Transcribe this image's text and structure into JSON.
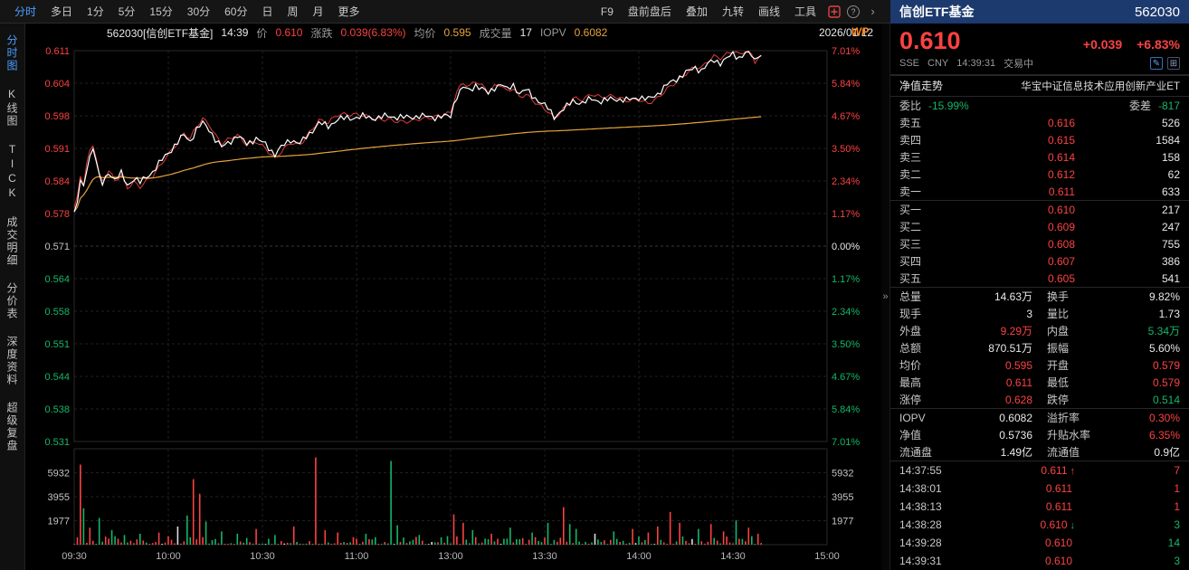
{
  "icons": {
    "help": "?",
    "more": "›",
    "collapse": "»",
    "edit": "✎",
    "grid": "⊞"
  },
  "toolbar": {
    "left_items": [
      "分时",
      "多日",
      "1分",
      "5分",
      "15分",
      "30分",
      "60分",
      "日",
      "周",
      "月",
      "更多"
    ],
    "active_item": "分时",
    "right_items": [
      "F9",
      "盘前盘后",
      "叠加",
      "九转",
      "画线",
      "工具"
    ]
  },
  "sidebar": {
    "items": [
      "分时图",
      "K线图",
      "TICK",
      "成交明细",
      "分价表",
      "深度资料",
      "超级复盘"
    ],
    "active_item": "分时图"
  },
  "chart_header": {
    "code_name": "562030[信创ETF基金]",
    "time": "14:39",
    "price_label": "价",
    "price": "0.610",
    "change_label": "涨跌",
    "change": "0.039(6.83%)",
    "avg_label": "均价",
    "avg": "0.595",
    "volume_label": "成交量",
    "volume": "17",
    "iopv_label": "IOPV",
    "iopv": "0.6082",
    "date": "2026/01/12",
    "wp_badge": "WP"
  },
  "chart": {
    "type": "line",
    "y_labels_left": [
      "0.611",
      "0.604",
      "0.598",
      "0.591",
      "0.584",
      "0.578",
      "0.571",
      "0.564",
      "0.558",
      "0.551",
      "0.544",
      "0.538",
      "0.531"
    ],
    "y_labels_right": [
      "7.01%",
      "5.84%",
      "4.67%",
      "3.50%",
      "2.34%",
      "1.17%",
      "0.00%",
      "1.17%",
      "2.34%",
      "3.50%",
      "4.67%",
      "5.84%",
      "7.01%"
    ],
    "vol_labels": [
      "5932",
      "3955",
      "1977"
    ],
    "vol_gridline_values": [
      5932,
      3955,
      1977
    ],
    "time_labels": [
      "09:30",
      "10:00",
      "10:30",
      "11:00",
      "13:00",
      "13:30",
      "14:00",
      "14:30",
      "15:00"
    ],
    "time_minutes": [
      0,
      30,
      60,
      90,
      120,
      150,
      180,
      210,
      240
    ],
    "price_max": 0.611,
    "price_min": 0.531,
    "prev_close": 0.571,
    "vol_max": 7909,
    "total_minutes": 240,
    "current_minute": 219,
    "colors": {
      "up": "#fb4242",
      "down": "#14b768",
      "flat": "#dcdcdc",
      "price": "#ffffff",
      "avg": "#e6a33c",
      "net": "#e03b3b"
    },
    "price_waypoints": [
      [
        0,
        0.578
      ],
      [
        1,
        0.58
      ],
      [
        2,
        0.5845
      ],
      [
        3,
        0.5828
      ],
      [
        4,
        0.587
      ],
      [
        5,
        0.5895
      ],
      [
        6,
        0.591
      ],
      [
        7,
        0.5885
      ],
      [
        8,
        0.585
      ],
      [
        9,
        0.5838
      ],
      [
        11,
        0.5862
      ],
      [
        13,
        0.5845
      ],
      [
        15,
        0.5858
      ],
      [
        17,
        0.5835
      ],
      [
        19,
        0.5848
      ],
      [
        21,
        0.584
      ],
      [
        23,
        0.5852
      ],
      [
        25,
        0.5862
      ],
      [
        27,
        0.5878
      ],
      [
        29,
        0.5895
      ],
      [
        31,
        0.5908
      ],
      [
        33,
        0.5922
      ],
      [
        35,
        0.5938
      ],
      [
        37,
        0.5925
      ],
      [
        39,
        0.5948
      ],
      [
        41,
        0.5962
      ],
      [
        43,
        0.595
      ],
      [
        45,
        0.5928
      ],
      [
        47,
        0.5912
      ],
      [
        49,
        0.5922
      ],
      [
        52,
        0.5935
      ],
      [
        55,
        0.592
      ],
      [
        58,
        0.593
      ],
      [
        61,
        0.5918
      ],
      [
        64,
        0.5898
      ],
      [
        66,
        0.5912
      ],
      [
        69,
        0.5928
      ],
      [
        72,
        0.592
      ],
      [
        75,
        0.594
      ],
      [
        78,
        0.5962
      ],
      [
        81,
        0.5955
      ],
      [
        84,
        0.597
      ],
      [
        88,
        0.5972
      ],
      [
        92,
        0.5975
      ],
      [
        96,
        0.5972
      ],
      [
        100,
        0.5976
      ],
      [
        105,
        0.5973
      ],
      [
        110,
        0.5976
      ],
      [
        115,
        0.5974
      ],
      [
        120,
        0.5976
      ],
      [
        121,
        0.6
      ],
      [
        122,
        0.6018
      ],
      [
        124,
        0.6035
      ],
      [
        126,
        0.6028
      ],
      [
        128,
        0.604
      ],
      [
        130,
        0.6032
      ],
      [
        132,
        0.6022
      ],
      [
        134,
        0.6035
      ],
      [
        136,
        0.6042
      ],
      [
        138,
        0.603
      ],
      [
        140,
        0.604
      ],
      [
        142,
        0.6022
      ],
      [
        144,
        0.603
      ],
      [
        146,
        0.6018
      ],
      [
        148,
        0.6008
      ],
      [
        151,
        0.5992
      ],
      [
        153,
        0.5975
      ],
      [
        155,
        0.5985
      ],
      [
        157,
        0.5995
      ],
      [
        159,
        0.6008
      ],
      [
        162,
        0.6002
      ],
      [
        165,
        0.6012
      ],
      [
        168,
        0.6006
      ],
      [
        172,
        0.6012
      ],
      [
        176,
        0.6008
      ],
      [
        180,
        0.6015
      ],
      [
        183,
        0.601
      ],
      [
        186,
        0.6022
      ],
      [
        189,
        0.604
      ],
      [
        192,
        0.6052
      ],
      [
        195,
        0.6065
      ],
      [
        198,
        0.6075
      ],
      [
        200,
        0.607
      ],
      [
        202,
        0.6082
      ],
      [
        204,
        0.609
      ],
      [
        206,
        0.6086
      ],
      [
        208,
        0.6094
      ],
      [
        210,
        0.6102
      ],
      [
        212,
        0.6096
      ],
      [
        214,
        0.6106
      ],
      [
        216,
        0.61
      ],
      [
        217,
        0.6088
      ],
      [
        218,
        0.6096
      ],
      [
        219,
        0.61
      ]
    ],
    "vol_spikes": {
      "2": 6600,
      "3": 3000,
      "5": 1400,
      "8": 2200,
      "12": 1200,
      "16": 800,
      "21": 900,
      "27": 1000,
      "33": 1500,
      "36": 2400,
      "38": 5400,
      "40": 4200,
      "42": 1900,
      "47": 1100,
      "52": 900,
      "58": 1300,
      "64": 800,
      "70": 1500,
      "77": 7200,
      "80": 1200,
      "84": 1000,
      "93": 900,
      "101": 6900,
      "103": 1600,
      "110": 800,
      "121": 2500,
      "124": 1800,
      "127": 1200,
      "133": 900,
      "139": 1400,
      "146": 1000,
      "151": 1800,
      "156": 3100,
      "158": 1700,
      "160": 1300,
      "166": 900,
      "172": 1100,
      "178": 1300,
      "183": 1000,
      "186": 1500,
      "190": 2700,
      "193": 1800,
      "199": 1300,
      "203": 1700,
      "207": 1100,
      "211": 2000,
      "215": 1400,
      "218": 900
    }
  },
  "panel": {
    "header": {
      "name": "信创ETF基金",
      "code": "562030"
    },
    "quote": {
      "price": "0.610",
      "change": "+0.039",
      "change_pct": "+6.83%",
      "exchange": "SSE",
      "currency": "CNY",
      "time": "14:39:31",
      "status": "交易中"
    },
    "nav": {
      "left": "净值走势",
      "right": "华宝中证信息技术应用创新产业ET"
    },
    "weibi": {
      "label1": "委比",
      "value1": "-15.99%",
      "label2": "委差",
      "value2": "-817"
    },
    "asks": [
      {
        "label": "卖五",
        "price": "0.616",
        "vol": "526"
      },
      {
        "label": "卖四",
        "price": "0.615",
        "vol": "1584"
      },
      {
        "label": "卖三",
        "price": "0.614",
        "vol": "158"
      },
      {
        "label": "卖二",
        "price": "0.612",
        "vol": "62"
      },
      {
        "label": "卖一",
        "price": "0.611",
        "vol": "633"
      }
    ],
    "bids": [
      {
        "label": "买一",
        "price": "0.610",
        "vol": "217"
      },
      {
        "label": "买二",
        "price": "0.609",
        "vol": "247"
      },
      {
        "label": "买三",
        "price": "0.608",
        "vol": "755"
      },
      {
        "label": "买四",
        "price": "0.607",
        "vol": "386"
      },
      {
        "label": "买五",
        "price": "0.605",
        "vol": "541"
      }
    ],
    "stats": [
      {
        "l1": "总量",
        "v1": "14.63万",
        "c1": "white",
        "l2": "换手",
        "v2": "9.82%",
        "c2": "white"
      },
      {
        "l1": "现手",
        "v1": "3",
        "c1": "white",
        "l2": "量比",
        "v2": "1.73",
        "c2": "white"
      },
      {
        "l1": "外盘",
        "v1": "9.29万",
        "c1": "red",
        "l2": "内盘",
        "v2": "5.34万",
        "c2": "green"
      },
      {
        "l1": "总额",
        "v1": "870.51万",
        "c1": "white",
        "l2": "振幅",
        "v2": "5.60%",
        "c2": "white"
      },
      {
        "l1": "均价",
        "v1": "0.595",
        "c1": "red",
        "l2": "开盘",
        "v2": "0.579",
        "c2": "red"
      },
      {
        "l1": "最高",
        "v1": "0.611",
        "c1": "red",
        "l2": "最低",
        "v2": "0.579",
        "c2": "red"
      },
      {
        "l1": "涨停",
        "v1": "0.628",
        "c1": "red",
        "l2": "跌停",
        "v2": "0.514",
        "c2": "green"
      }
    ],
    "iopv": [
      {
        "l1": "IOPV",
        "v1": "0.6082",
        "c1": "white",
        "l2": "溢折率",
        "v2": "0.30%",
        "c2": "red"
      },
      {
        "l1": "净值",
        "v1": "0.5736",
        "c1": "white",
        "l2": "升贴水率",
        "v2": "6.35%",
        "c2": "red"
      },
      {
        "l1": "流通盘",
        "v1": "1.49亿",
        "c1": "white",
        "l2": "流通值",
        "v2": "0.9亿",
        "c2": "white"
      }
    ],
    "ticks": [
      {
        "time": "14:37:55",
        "price": "0.611",
        "arrow": "↑",
        "arrow_color": "red",
        "count": "7",
        "count_color": "red"
      },
      {
        "time": "14:38:01",
        "price": "0.611",
        "arrow": "",
        "arrow_color": "",
        "count": "1",
        "count_color": "red"
      },
      {
        "time": "14:38:13",
        "price": "0.611",
        "arrow": "",
        "arrow_color": "",
        "count": "1",
        "count_color": "red"
      },
      {
        "time": "14:38:28",
        "price": "0.610",
        "arrow": "↓",
        "arrow_color": "green",
        "count": "3",
        "count_color": "green"
      },
      {
        "time": "14:39:28",
        "price": "0.610",
        "arrow": "",
        "arrow_color": "",
        "count": "14",
        "count_color": "green"
      },
      {
        "time": "14:39:31",
        "price": "0.610",
        "arrow": "",
        "arrow_color": "",
        "count": "3",
        "count_color": "green"
      }
    ]
  }
}
